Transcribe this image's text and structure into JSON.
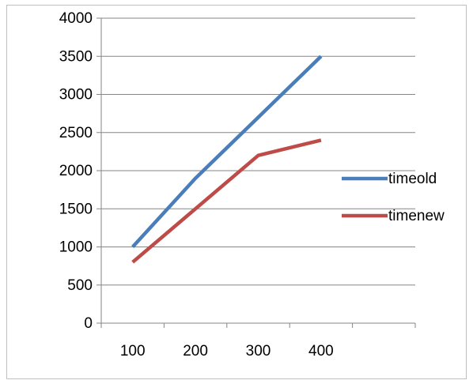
{
  "chart_data": {
    "type": "line",
    "categories": [
      "100",
      "200",
      "300",
      "400"
    ],
    "series": [
      {
        "name": "timeold",
        "values": [
          1000,
          1900,
          2700,
          3500
        ],
        "color": "#4a7ebb"
      },
      {
        "name": "timenew",
        "values": [
          800,
          1500,
          2200,
          2400
        ],
        "color": "#be4b48"
      }
    ],
    "ylim": [
      0,
      4000
    ],
    "yticks": [
      "0",
      "500",
      "1000",
      "1500",
      "2000",
      "2500",
      "3000",
      "3500",
      "4000"
    ],
    "grid": true,
    "legend": "right",
    "title": "",
    "xlabel": "",
    "ylabel": ""
  }
}
